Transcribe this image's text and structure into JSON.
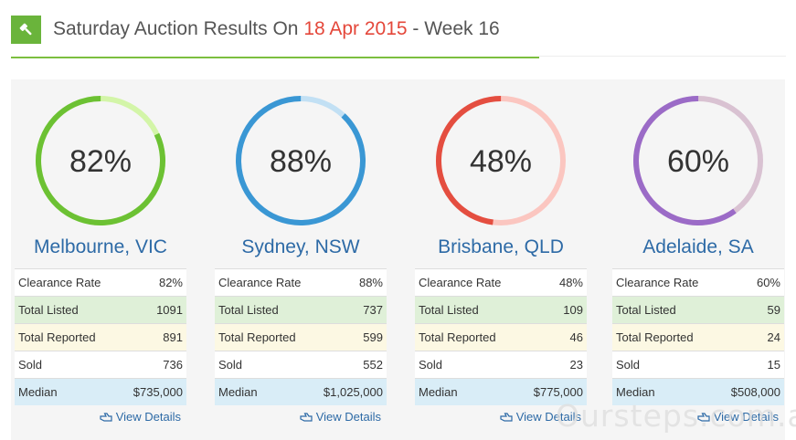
{
  "header": {
    "title_prefix": "Saturday Auction Results On ",
    "title_date": "18 Apr 2015",
    "title_suffix": " - Week 16",
    "icon": "gavel-icon"
  },
  "colors": {
    "accent_green": "#6ab43b",
    "date_red": "#e4473a",
    "link_blue": "#2d6aa6"
  },
  "labels": {
    "clearance_rate": "Clearance Rate",
    "total_listed": "Total Listed",
    "total_reported": "Total Reported",
    "sold": "Sold",
    "median": "Median",
    "view_details": "View Details"
  },
  "cities": [
    {
      "name": "Melbourne, VIC",
      "percent": "82%",
      "fraction": 0.82,
      "color": "#6cc133",
      "track": "#d3f5a8",
      "clearance_rate": "82%",
      "total_listed": "1091",
      "total_reported": "891",
      "sold": "736",
      "median": "$735,000"
    },
    {
      "name": "Sydney, NSW",
      "percent": "88%",
      "fraction": 0.88,
      "color": "#3a97d4",
      "track": "#c2e0f4",
      "clearance_rate": "88%",
      "total_listed": "737",
      "total_reported": "599",
      "sold": "552",
      "median": "$1,025,000"
    },
    {
      "name": "Brisbane, QLD",
      "percent": "48%",
      "fraction": 0.48,
      "color": "#e44e40",
      "track": "#fbc6c0",
      "clearance_rate": "48%",
      "total_listed": "109",
      "total_reported": "46",
      "sold": "23",
      "median": "$775,000"
    },
    {
      "name": "Adelaide, SA",
      "percent": "60%",
      "fraction": 0.6,
      "color": "#9b6bc7",
      "track": "#d9c2d2",
      "clearance_rate": "60%",
      "total_listed": "59",
      "total_reported": "24",
      "sold": "15",
      "median": "$508,000"
    }
  ],
  "watermark": "Oursteps.com.au"
}
